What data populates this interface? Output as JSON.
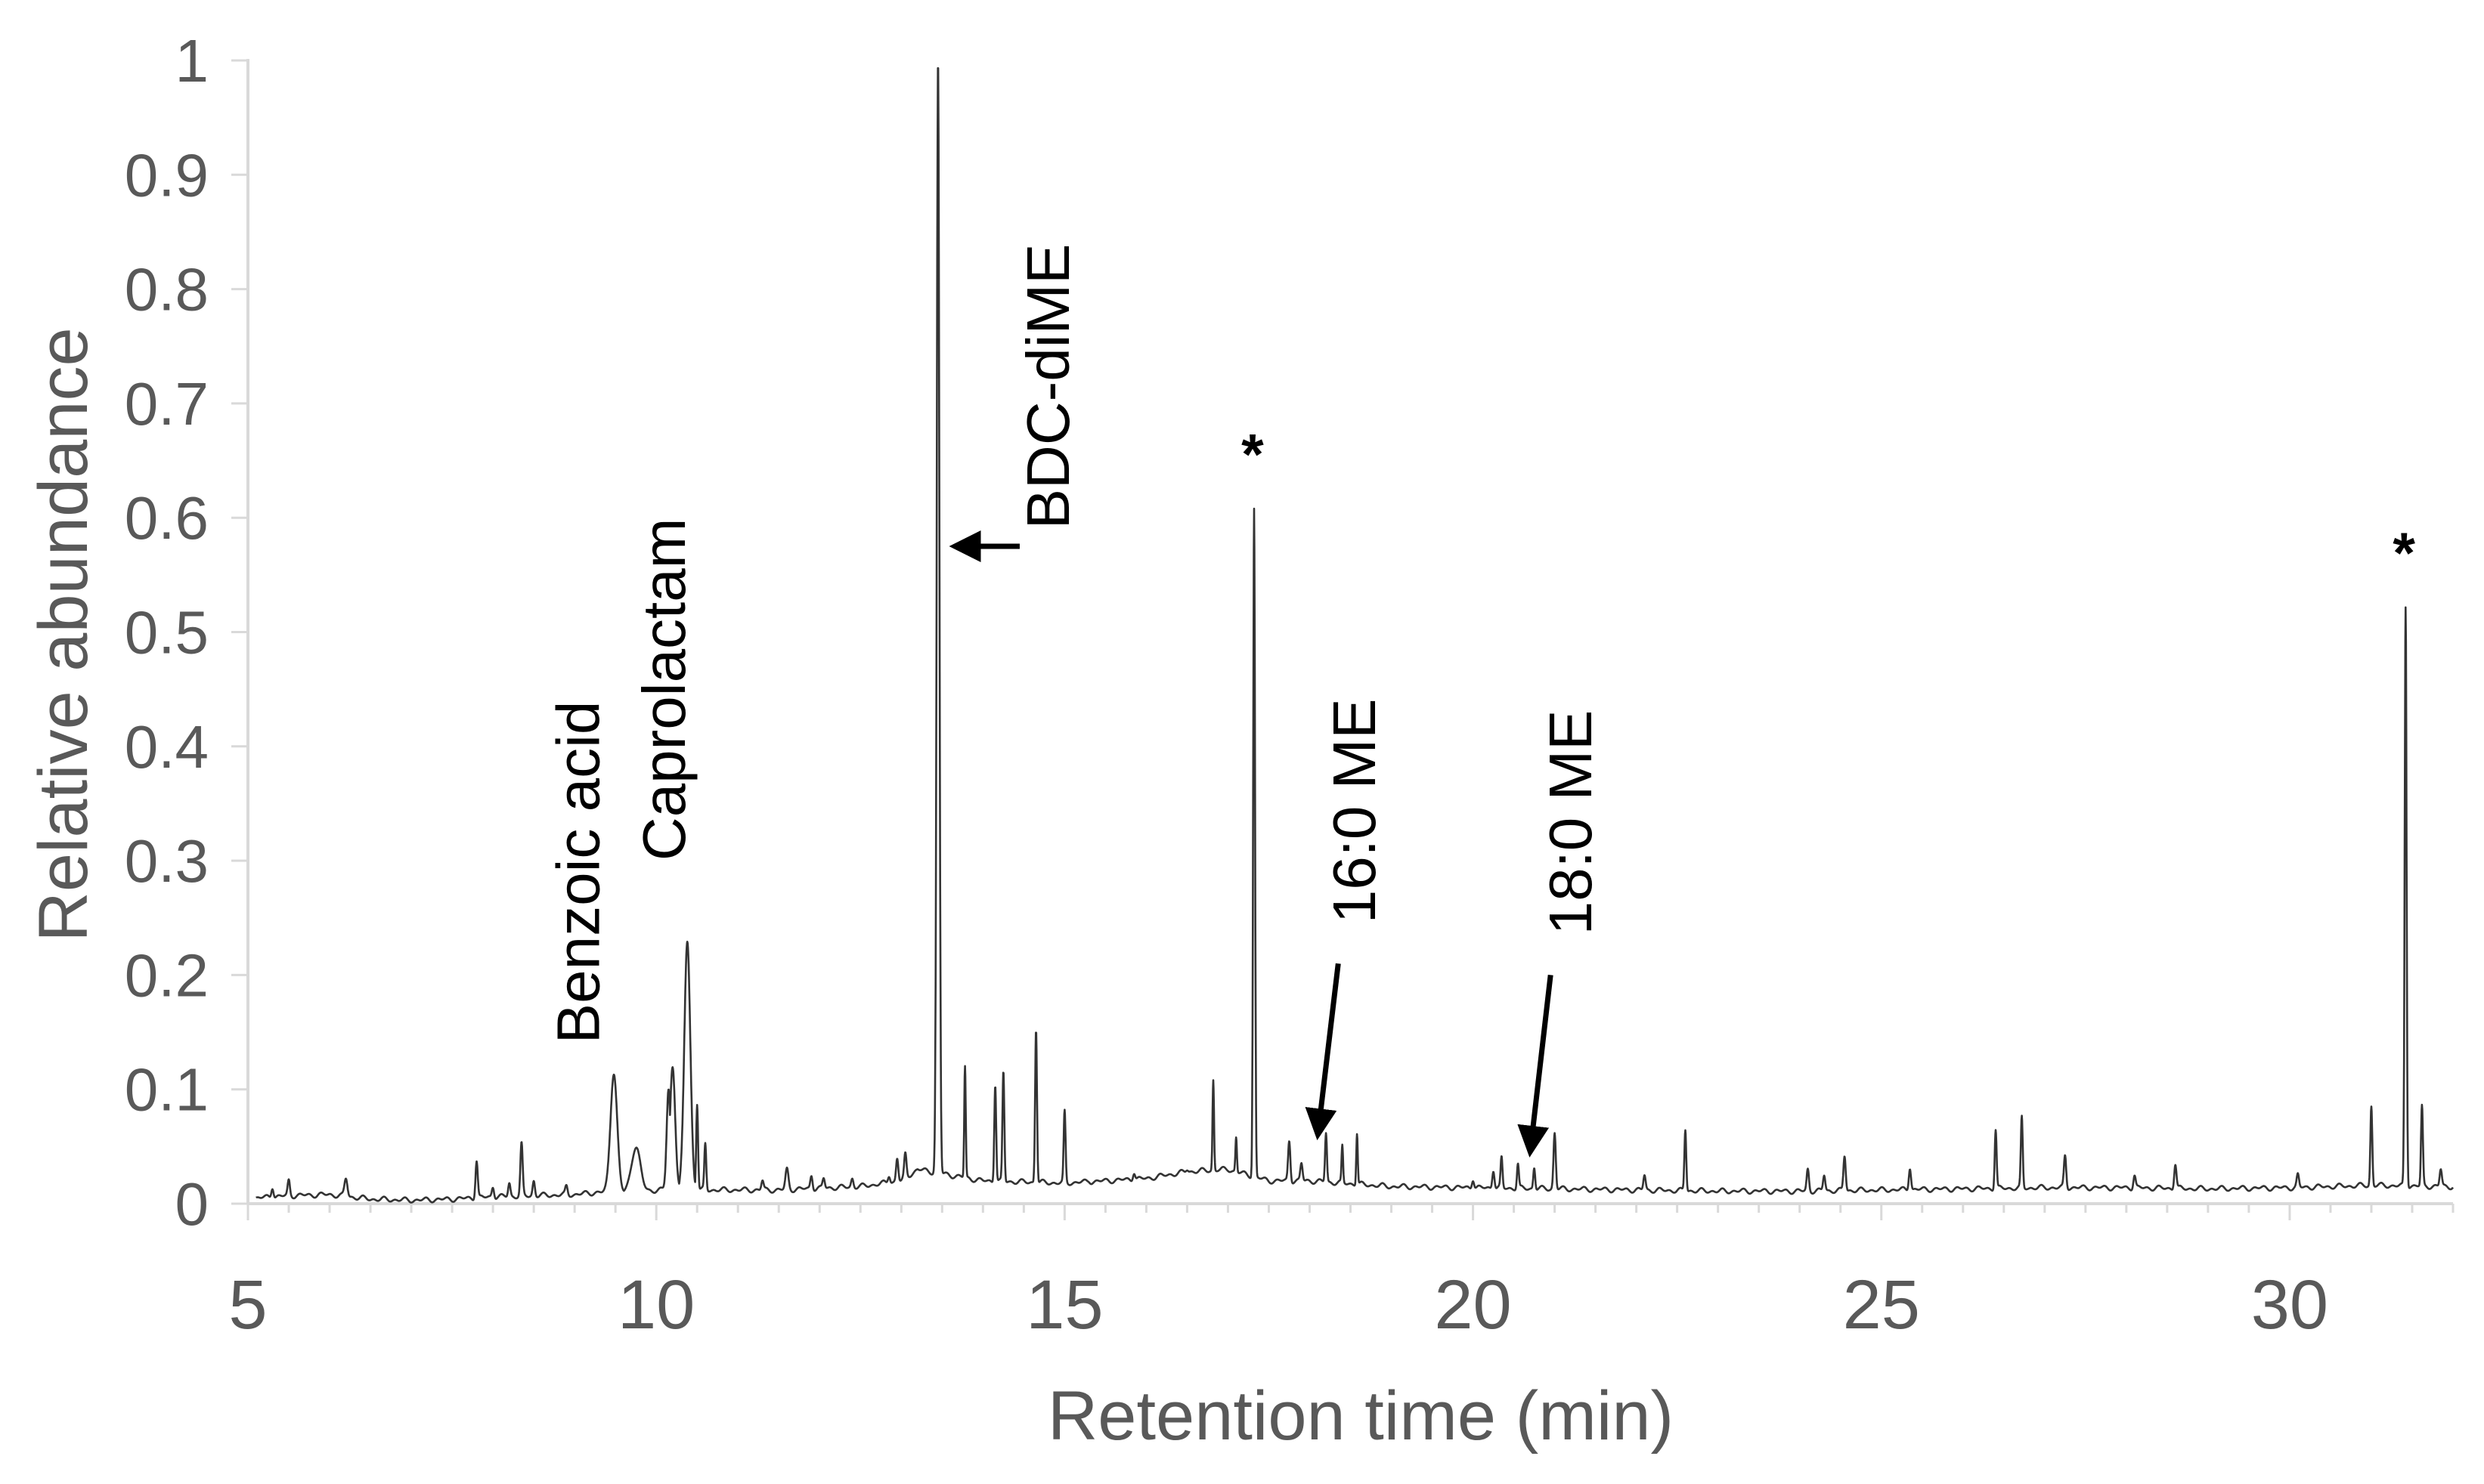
{
  "chart_data": {
    "type": "line",
    "title": "",
    "xlabel": "Retention time (min)",
    "ylabel": "Relative abundance",
    "xlim": [
      5,
      32
    ],
    "ylim": [
      0,
      1
    ],
    "x_ticks": [
      5,
      10,
      15,
      20,
      25,
      30
    ],
    "y_ticks": [
      0,
      0.1,
      0.2,
      0.3,
      0.4,
      0.5,
      0.6,
      0.7,
      0.8,
      0.9,
      1
    ],
    "y_tick_labels": [
      "0",
      "0.1",
      "0.2",
      "0.3",
      "0.4",
      "0.5",
      "0.6",
      "0.7",
      "0.8",
      "0.9",
      "1"
    ],
    "x_tick_labels": [
      "5",
      "10",
      "15",
      "20",
      "25",
      "30"
    ],
    "grid": false,
    "legend": "none",
    "line_color": "#333333",
    "axis_color": "#d9d9d9",
    "text_color": "#595959",
    "baseline": [
      [
        5.1,
        0.005
      ],
      [
        5.5,
        0.007
      ],
      [
        6.0,
        0.008
      ],
      [
        6.5,
        0.004
      ],
      [
        7.0,
        0.003
      ],
      [
        7.5,
        0.004
      ],
      [
        8.0,
        0.006
      ],
      [
        8.5,
        0.007
      ],
      [
        9.0,
        0.008
      ],
      [
        9.3,
        0.01
      ],
      [
        9.8,
        0.01
      ],
      [
        10.0,
        0.012
      ],
      [
        10.8,
        0.012
      ],
      [
        11.5,
        0.012
      ],
      [
        12.5,
        0.015
      ],
      [
        13.0,
        0.02
      ],
      [
        13.2,
        0.03
      ],
      [
        13.6,
        0.025
      ],
      [
        14.0,
        0.02
      ],
      [
        15.0,
        0.018
      ],
      [
        16.0,
        0.022
      ],
      [
        16.5,
        0.028
      ],
      [
        17.0,
        0.03
      ],
      [
        17.5,
        0.02
      ],
      [
        18.0,
        0.02
      ],
      [
        19.0,
        0.015
      ],
      [
        20.0,
        0.014
      ],
      [
        21.0,
        0.013
      ],
      [
        22.0,
        0.012
      ],
      [
        23.0,
        0.011
      ],
      [
        24.0,
        0.011
      ],
      [
        25.0,
        0.012
      ],
      [
        26.0,
        0.013
      ],
      [
        27.0,
        0.014
      ],
      [
        28.0,
        0.014
      ],
      [
        29.0,
        0.013
      ],
      [
        30.0,
        0.014
      ],
      [
        31.0,
        0.016
      ],
      [
        32.0,
        0.015
      ]
    ],
    "peaks": [
      {
        "x": 5.3,
        "y": 0.015,
        "w": 0.03
      },
      {
        "x": 5.5,
        "y": 0.02,
        "w": 0.03
      },
      {
        "x": 6.2,
        "y": 0.022,
        "w": 0.04
      },
      {
        "x": 7.8,
        "y": 0.038,
        "w": 0.03
      },
      {
        "x": 8.0,
        "y": 0.015,
        "w": 0.03
      },
      {
        "x": 8.2,
        "y": 0.018,
        "w": 0.03
      },
      {
        "x": 8.35,
        "y": 0.052,
        "w": 0.03
      },
      {
        "x": 8.5,
        "y": 0.02,
        "w": 0.03
      },
      {
        "x": 8.9,
        "y": 0.015,
        "w": 0.03
      },
      {
        "x": 9.48,
        "y": 0.115,
        "w": 0.09
      },
      {
        "x": 9.75,
        "y": 0.05,
        "w": 0.12
      },
      {
        "x": 10.15,
        "y": 0.1,
        "w": 0.05
      },
      {
        "x": 10.38,
        "y": 0.23,
        "w": 0.08
      },
      {
        "x": 10.2,
        "y": 0.12,
        "w": 0.07
      },
      {
        "x": 10.5,
        "y": 0.088,
        "w": 0.025
      },
      {
        "x": 10.6,
        "y": 0.052,
        "w": 0.025
      },
      {
        "x": 11.3,
        "y": 0.02,
        "w": 0.03
      },
      {
        "x": 11.6,
        "y": 0.03,
        "w": 0.04
      },
      {
        "x": 11.9,
        "y": 0.025,
        "w": 0.03
      },
      {
        "x": 12.05,
        "y": 0.022,
        "w": 0.03
      },
      {
        "x": 12.4,
        "y": 0.022,
        "w": 0.03
      },
      {
        "x": 12.85,
        "y": 0.025,
        "w": 0.03
      },
      {
        "x": 12.95,
        "y": 0.04,
        "w": 0.03
      },
      {
        "x": 13.05,
        "y": 0.043,
        "w": 0.03
      },
      {
        "x": 13.45,
        "y": 1.0,
        "w": 0.035
      },
      {
        "x": 13.78,
        "y": 0.12,
        "w": 0.02
      },
      {
        "x": 14.15,
        "y": 0.105,
        "w": 0.025
      },
      {
        "x": 14.25,
        "y": 0.115,
        "w": 0.025
      },
      {
        "x": 14.65,
        "y": 0.153,
        "w": 0.025
      },
      {
        "x": 15.0,
        "y": 0.08,
        "w": 0.025
      },
      {
        "x": 15.3,
        "y": 0.02,
        "w": 0.03
      },
      {
        "x": 15.85,
        "y": 0.028,
        "w": 0.03
      },
      {
        "x": 16.5,
        "y": 0.03,
        "w": 0.03
      },
      {
        "x": 16.82,
        "y": 0.108,
        "w": 0.02
      },
      {
        "x": 17.1,
        "y": 0.058,
        "w": 0.02
      },
      {
        "x": 17.32,
        "y": 0.608,
        "w": 0.025
      },
      {
        "x": 17.75,
        "y": 0.055,
        "w": 0.03
      },
      {
        "x": 17.9,
        "y": 0.035,
        "w": 0.03
      },
      {
        "x": 18.2,
        "y": 0.062,
        "w": 0.025
      },
      {
        "x": 18.4,
        "y": 0.05,
        "w": 0.02
      },
      {
        "x": 18.58,
        "y": 0.062,
        "w": 0.02
      },
      {
        "x": 20.0,
        "y": 0.022,
        "w": 0.03
      },
      {
        "x": 20.25,
        "y": 0.03,
        "w": 0.03
      },
      {
        "x": 20.35,
        "y": 0.04,
        "w": 0.025
      },
      {
        "x": 20.55,
        "y": 0.035,
        "w": 0.025
      },
      {
        "x": 20.75,
        "y": 0.032,
        "w": 0.025
      },
      {
        "x": 21.0,
        "y": 0.062,
        "w": 0.03
      },
      {
        "x": 22.1,
        "y": 0.025,
        "w": 0.03
      },
      {
        "x": 22.6,
        "y": 0.065,
        "w": 0.025
      },
      {
        "x": 24.1,
        "y": 0.03,
        "w": 0.03
      },
      {
        "x": 24.3,
        "y": 0.025,
        "w": 0.03
      },
      {
        "x": 24.55,
        "y": 0.042,
        "w": 0.03
      },
      {
        "x": 25.35,
        "y": 0.032,
        "w": 0.03
      },
      {
        "x": 26.4,
        "y": 0.065,
        "w": 0.025
      },
      {
        "x": 26.72,
        "y": 0.075,
        "w": 0.025
      },
      {
        "x": 27.25,
        "y": 0.042,
        "w": 0.03
      },
      {
        "x": 28.1,
        "y": 0.025,
        "w": 0.03
      },
      {
        "x": 28.6,
        "y": 0.035,
        "w": 0.03
      },
      {
        "x": 30.1,
        "y": 0.025,
        "w": 0.03
      },
      {
        "x": 31.0,
        "y": 0.085,
        "w": 0.025
      },
      {
        "x": 31.42,
        "y": 0.522,
        "w": 0.025
      },
      {
        "x": 31.62,
        "y": 0.085,
        "w": 0.025
      },
      {
        "x": 31.85,
        "y": 0.03,
        "w": 0.03
      }
    ],
    "annotations": [
      {
        "text": "Benzoic acid",
        "x": 9.3,
        "y": 0.14,
        "rotation": -90
      },
      {
        "text": "Caprolactam",
        "x": 10.35,
        "y": 0.3,
        "rotation": -90
      },
      {
        "text": "BDC-diME",
        "x": 15.05,
        "y": 0.59,
        "rotation": -90
      },
      {
        "text": "16:0 ME",
        "x": 18.8,
        "y": 0.245,
        "rotation": -90
      },
      {
        "text": "18:0 ME",
        "x": 21.45,
        "y": 0.235,
        "rotation": -90
      },
      {
        "text": "*",
        "x": 17.3,
        "y": 0.638,
        "rotation": 0
      },
      {
        "text": "*",
        "x": 31.4,
        "y": 0.552,
        "rotation": 0
      }
    ],
    "arrows": [
      {
        "label": "BDC-diME",
        "from": [
          14.45,
          0.575
        ],
        "to": [
          13.65,
          0.575
        ]
      },
      {
        "label": "16:0 ME",
        "from": [
          18.35,
          0.21
        ],
        "to": [
          18.1,
          0.06
        ]
      },
      {
        "label": "18:0 ME",
        "from": [
          20.95,
          0.2
        ],
        "to": [
          20.7,
          0.045
        ]
      }
    ]
  }
}
